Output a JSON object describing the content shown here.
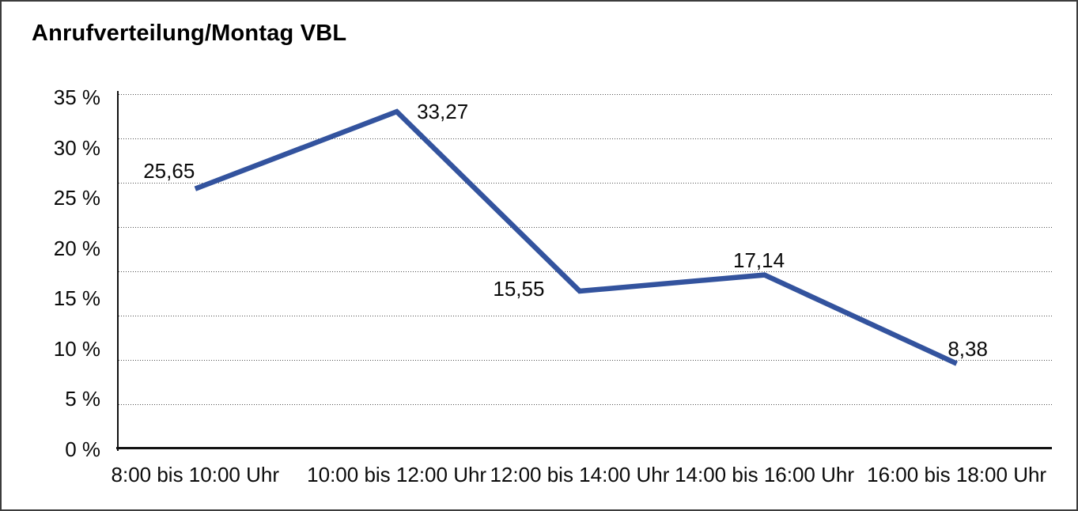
{
  "title": "Anrufverteilung/Montag VBL",
  "chart_data": {
    "type": "line",
    "title": "Anrufverteilung/Montag VBL",
    "categories": [
      "8:00 bis 10:00 Uhr",
      "10:00 bis 12:00 Uhr",
      "12:00 bis 14:00 Uhr",
      "14:00 bis 16:00 Uhr",
      "16:00 bis 18:00 Uhr"
    ],
    "values": [
      25.65,
      33.27,
      15.55,
      17.14,
      8.38
    ],
    "data_labels": [
      "25,65",
      "33,27",
      "15,55",
      "17,14",
      "8,38"
    ],
    "ylabel": "",
    "xlabel": "",
    "ylim": [
      0,
      35
    ],
    "y_tick_labels": [
      "35 %",
      "30 %",
      "25 %",
      "20 %",
      "15 %",
      "10 %",
      "5 %",
      "0 %"
    ],
    "y_tick_step_percent": 5,
    "gridlines_horizontal_dotted": 8,
    "legend": "none",
    "line_color": "#33539e",
    "axis_color": "#111111",
    "gridline_color": "#4f4f4f",
    "text_color": "#0a0a0a",
    "background_color": "#ffffff",
    "border_color": "#3c3c3c"
  }
}
